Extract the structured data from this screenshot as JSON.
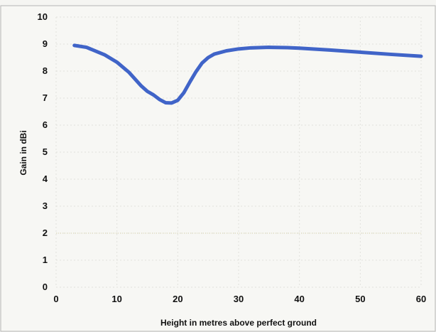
{
  "chart_data": {
    "type": "line",
    "xlabel": "Height in metres above perfect ground",
    "ylabel": "Gain in dBi",
    "xlim": [
      0,
      60
    ],
    "ylim": [
      0,
      10
    ],
    "xticks": [
      0,
      10,
      20,
      30,
      40,
      50,
      60
    ],
    "yticks": [
      0,
      1,
      2,
      3,
      4,
      5,
      6,
      7,
      8,
      9,
      10
    ],
    "grid": true,
    "series": [
      {
        "color": "#4064c8",
        "x": [
          3,
          5,
          8,
          10,
          12,
          14,
          15,
          16,
          17,
          18,
          19,
          20,
          21,
          22,
          23,
          24,
          25,
          26,
          28,
          30,
          32,
          35,
          38,
          40,
          45,
          50,
          55,
          60
        ],
        "y": [
          8.95,
          8.88,
          8.6,
          8.33,
          7.95,
          7.45,
          7.25,
          7.12,
          6.95,
          6.83,
          6.82,
          6.92,
          7.2,
          7.6,
          7.98,
          8.3,
          8.5,
          8.63,
          8.75,
          8.82,
          8.86,
          8.88,
          8.87,
          8.85,
          8.78,
          8.7,
          8.62,
          8.55
        ]
      }
    ]
  }
}
